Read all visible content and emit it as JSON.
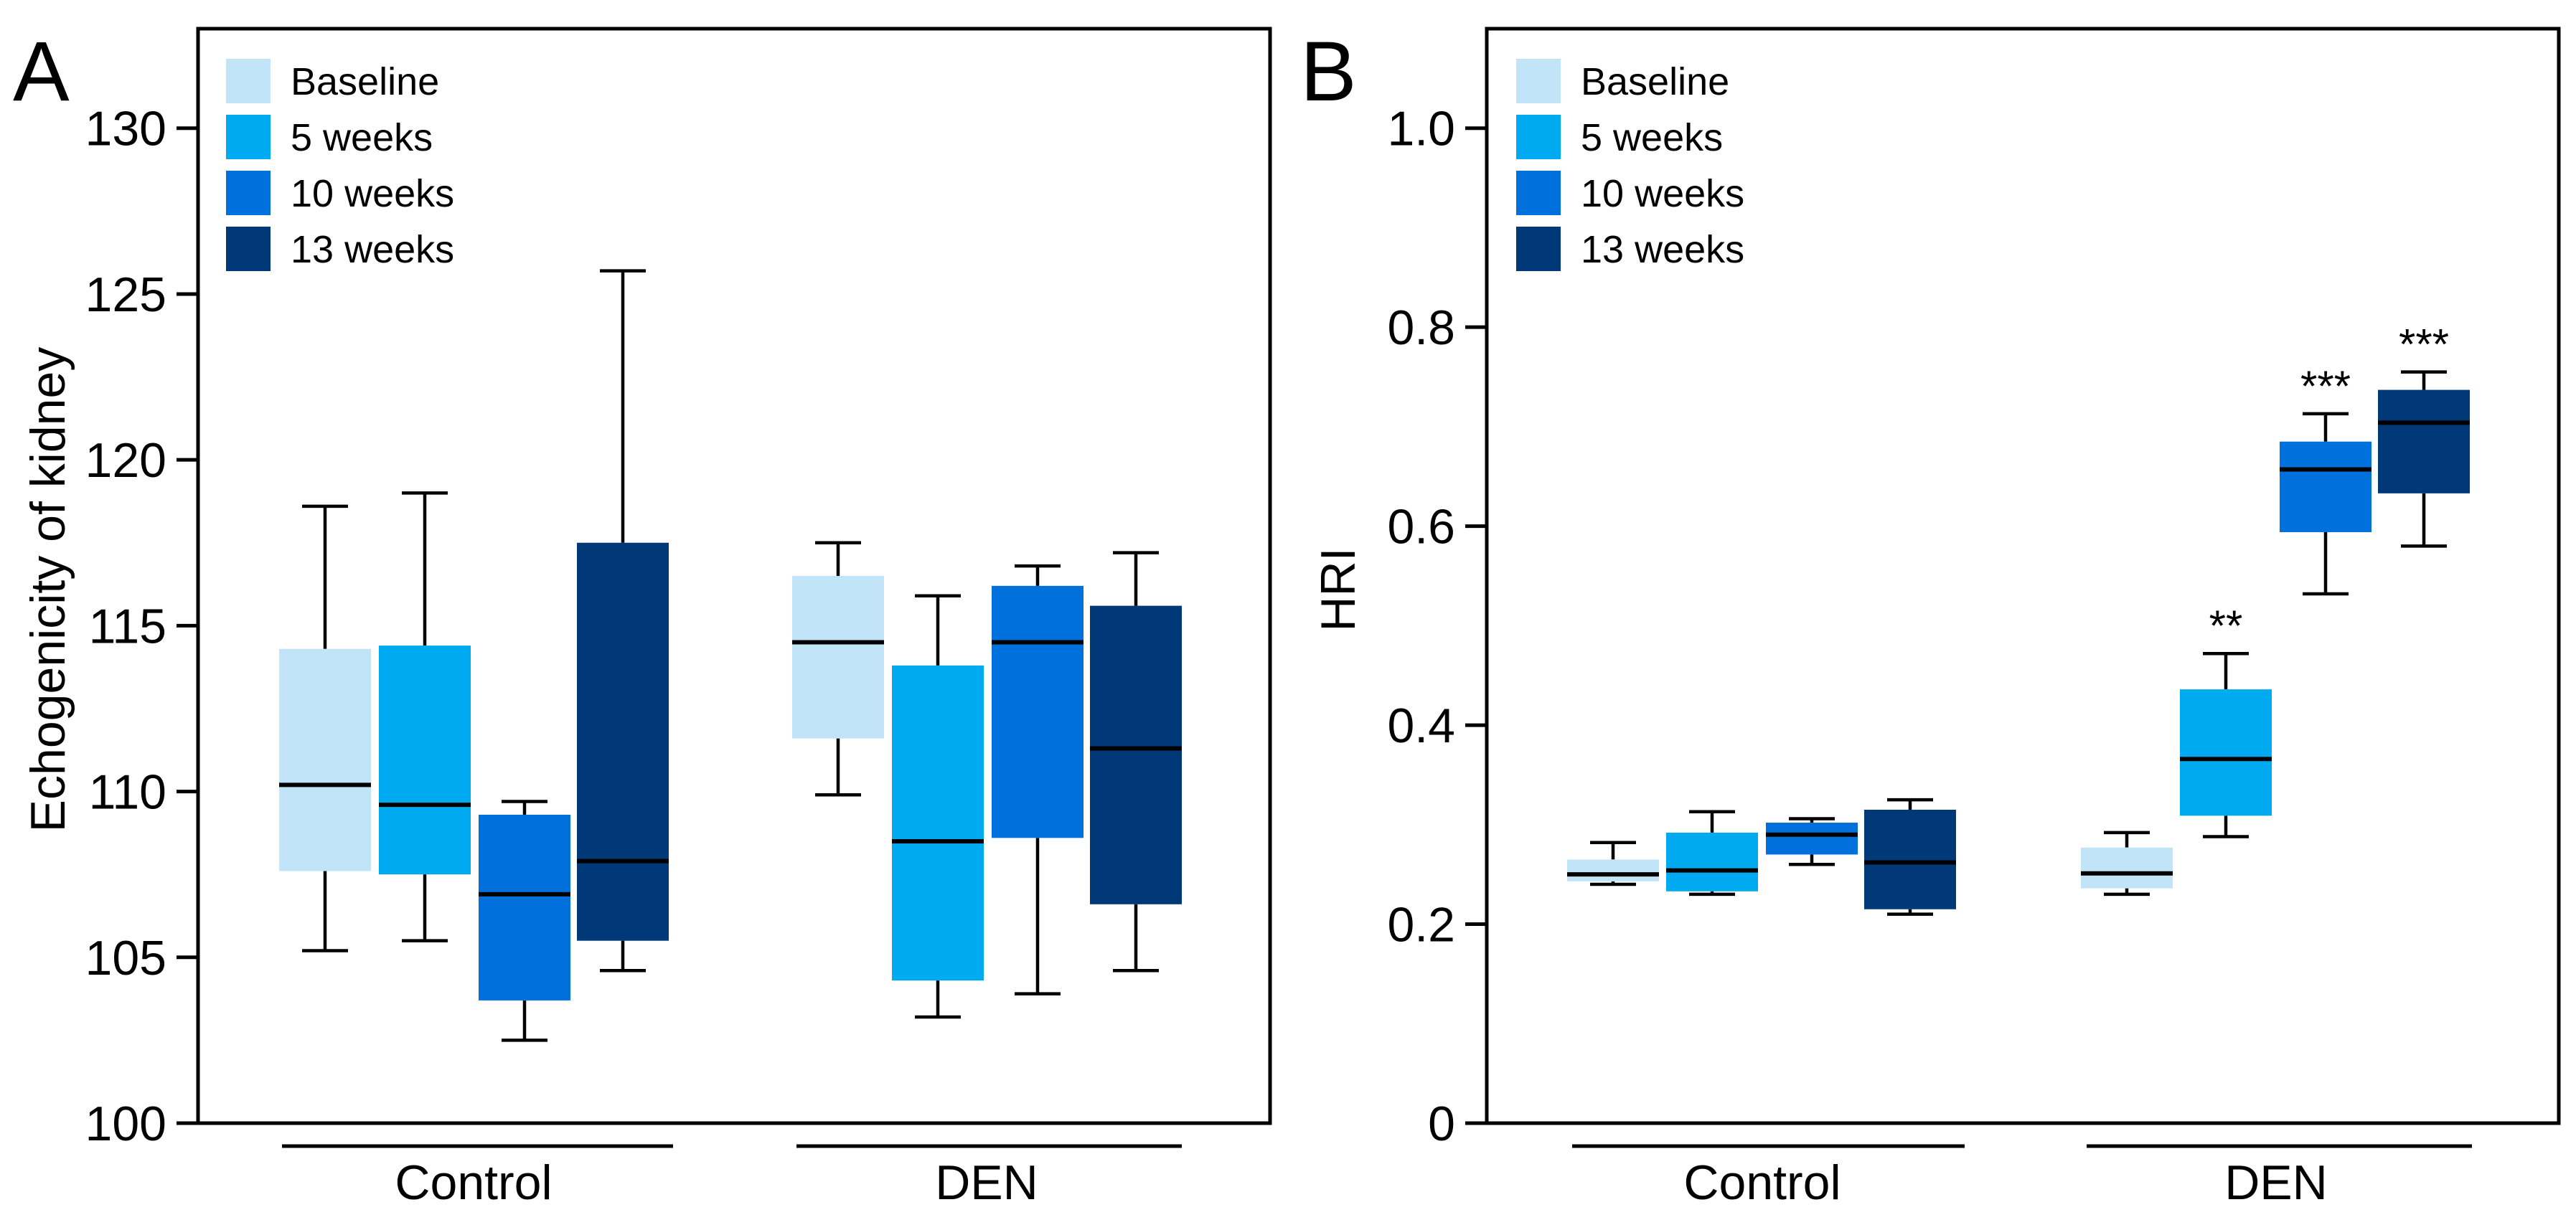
{
  "chart_data": [
    {
      "type": "boxplot",
      "panel_label": "A",
      "title": "",
      "xlabel": "",
      "ylabel": "Echogenicity of kidney",
      "ylim": [
        100,
        133
      ],
      "yticks": [
        100,
        105,
        110,
        115,
        120,
        125,
        130
      ],
      "groups": [
        "Control",
        "DEN"
      ],
      "legend": [
        "Baseline",
        "5 weeks",
        "10 weeks",
        "13 weeks"
      ],
      "legend_position": "top-left",
      "colors": [
        "#c2e4f9",
        "#00aaf0",
        "#0070dc",
        "#003878"
      ],
      "series": [
        {
          "name": "Baseline",
          "boxes": [
            {
              "group": "Control",
              "min": 105.2,
              "q1": 107.6,
              "median": 110.2,
              "q3": 114.3,
              "max": 118.6,
              "sig": ""
            },
            {
              "group": "DEN",
              "min": 109.9,
              "q1": 111.6,
              "median": 114.5,
              "q3": 116.5,
              "max": 117.5,
              "sig": ""
            }
          ]
        },
        {
          "name": "5 weeks",
          "boxes": [
            {
              "group": "Control",
              "min": 105.5,
              "q1": 107.5,
              "median": 109.6,
              "q3": 114.4,
              "max": 119.0,
              "sig": ""
            },
            {
              "group": "DEN",
              "min": 103.2,
              "q1": 104.3,
              "median": 108.5,
              "q3": 113.8,
              "max": 115.9,
              "sig": ""
            }
          ]
        },
        {
          "name": "10 weeks",
          "boxes": [
            {
              "group": "Control",
              "min": 102.5,
              "q1": 103.7,
              "median": 106.9,
              "q3": 109.3,
              "max": 109.7,
              "sig": ""
            },
            {
              "group": "DEN",
              "min": 103.9,
              "q1": 108.6,
              "median": 114.5,
              "q3": 116.2,
              "max": 116.8,
              "sig": ""
            }
          ]
        },
        {
          "name": "13 weeks",
          "boxes": [
            {
              "group": "Control",
              "min": 104.6,
              "q1": 105.5,
              "median": 107.9,
              "q3": 117.5,
              "max": 125.7,
              "sig": ""
            },
            {
              "group": "DEN",
              "min": 104.6,
              "q1": 106.6,
              "median": 111.3,
              "q3": 115.6,
              "max": 117.2,
              "sig": ""
            }
          ]
        }
      ]
    },
    {
      "type": "boxplot",
      "panel_label": "B",
      "title": "",
      "xlabel": "",
      "ylabel": "HRI",
      "ylim": [
        0,
        1.1
      ],
      "yticks": [
        0,
        0.2,
        0.4,
        0.6,
        0.8,
        1.0
      ],
      "ytick_labels": [
        "0",
        "0.2",
        "0.4",
        "0.6",
        "0.8",
        "1.0"
      ],
      "groups": [
        "Control",
        "DEN"
      ],
      "legend": [
        "Baseline",
        "5 weeks",
        "10 weeks",
        "13 weeks"
      ],
      "legend_position": "top-left",
      "colors": [
        "#c2e4f9",
        "#00aaf0",
        "#0070dc",
        "#003878"
      ],
      "series": [
        {
          "name": "Baseline",
          "boxes": [
            {
              "group": "Control",
              "min": 0.24,
              "q1": 0.243,
              "median": 0.25,
              "q3": 0.265,
              "max": 0.282,
              "sig": ""
            },
            {
              "group": "DEN",
              "min": 0.23,
              "q1": 0.236,
              "median": 0.251,
              "q3": 0.277,
              "max": 0.292,
              "sig": ""
            }
          ]
        },
        {
          "name": "5 weeks",
          "boxes": [
            {
              "group": "Control",
              "min": 0.23,
              "q1": 0.233,
              "median": 0.254,
              "q3": 0.292,
              "max": 0.313,
              "sig": ""
            },
            {
              "group": "DEN",
              "min": 0.288,
              "q1": 0.309,
              "median": 0.366,
              "q3": 0.436,
              "max": 0.472,
              "sig": "**"
            }
          ]
        },
        {
          "name": "10 weeks",
          "boxes": [
            {
              "group": "Control",
              "min": 0.26,
              "q1": 0.27,
              "median": 0.29,
              "q3": 0.302,
              "max": 0.306,
              "sig": ""
            },
            {
              "group": "DEN",
              "min": 0.532,
              "q1": 0.594,
              "median": 0.657,
              "q3": 0.685,
              "max": 0.713,
              "sig": "***"
            }
          ]
        },
        {
          "name": "13 weeks",
          "boxes": [
            {
              "group": "Control",
              "min": 0.21,
              "q1": 0.215,
              "median": 0.262,
              "q3": 0.315,
              "max": 0.325,
              "sig": ""
            },
            {
              "group": "DEN",
              "min": 0.58,
              "q1": 0.633,
              "median": 0.704,
              "q3": 0.737,
              "max": 0.755,
              "sig": "***"
            }
          ]
        }
      ]
    }
  ]
}
